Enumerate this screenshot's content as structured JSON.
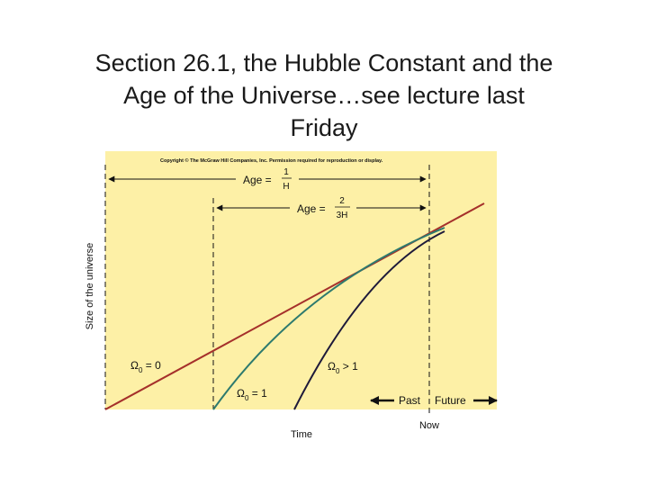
{
  "slide": {
    "title_lines": [
      "Section 26.1, the Hubble Constant and the",
      "Age of the Universe…see lecture last",
      "Friday"
    ]
  },
  "figure": {
    "copyright": "Copyright © The McGraw Hill Companies, Inc. Permission required for reproduction or display.",
    "age_label_1": "Age =",
    "age_frac_1": {
      "num": "1",
      "den": "H"
    },
    "age_label_2": "Age =",
    "age_frac_2": {
      "num": "2",
      "den": "3H"
    },
    "ylabel": "Size of the universe",
    "xlabel": "Time",
    "now_label": "Now",
    "past_label": "Past",
    "future_label": "Future",
    "omega_symbol": "Ω",
    "omega_sub": "0",
    "omega_labels": [
      " = 0",
      " = 1",
      " > 1"
    ],
    "colors": {
      "background": "#fdf0a6",
      "empty_universe": "#a5302b",
      "critical_universe": "#2d7a6e",
      "closed_universe": "#1e1a3a",
      "ink": "#111111"
    }
  }
}
